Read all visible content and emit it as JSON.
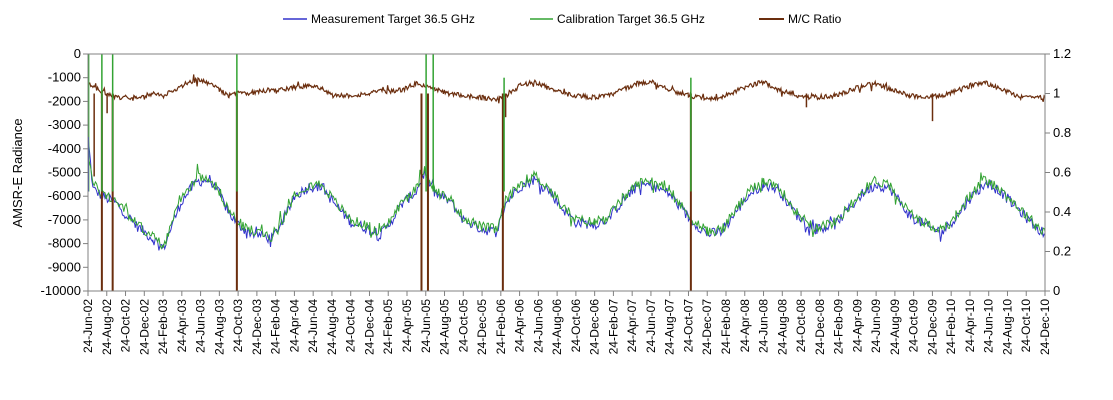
{
  "chart_data": {
    "type": "line",
    "title": "",
    "ylabel_left": "AMSR-E Radiance",
    "ylabel_right": "",
    "ylim_left": [
      -10000,
      0
    ],
    "yticks_left": [
      0,
      -1000,
      -2000,
      -3000,
      -4000,
      -5000,
      -6000,
      -7000,
      -8000,
      -9000,
      -10000
    ],
    "yticks_left_labels": [
      "0",
      "-1000",
      "-2000",
      "-3000",
      "-4000",
      "-5000",
      "-6000",
      "-7000",
      "-8000",
      "-9000",
      "-10000"
    ],
    "ylim_right": [
      0,
      1.2
    ],
    "yticks_right": [
      0,
      0.2,
      0.4,
      0.6,
      0.8,
      1,
      1.2
    ],
    "yticks_right_labels": [
      "0",
      "0.2",
      "0.4",
      "0.6",
      "0.8",
      "1",
      "1.2"
    ],
    "x_range": [
      "2002-06-24",
      "2010-12-24"
    ],
    "x_tick_labels": [
      "24-Jun-02",
      "24-Aug-02",
      "24-Oct-02",
      "24-Dec-02",
      "24-Feb-03",
      "24-Apr-03",
      "24-Jun-03",
      "24-Aug-03",
      "24-Oct-03",
      "24-Dec-03",
      "24-Feb-04",
      "24-Apr-04",
      "24-Jun-04",
      "24-Aug-04",
      "24-Oct-04",
      "24-Dec-04",
      "24-Feb-05",
      "24-Apr-05",
      "24-Jun-05",
      "24-Aug-05",
      "24-Oct-05",
      "24-Dec-05",
      "24-Feb-06",
      "24-Apr-06",
      "24-Jun-06",
      "24-Aug-06",
      "24-Oct-06",
      "24-Dec-06",
      "24-Feb-07",
      "24-Apr-07",
      "24-Jun-07",
      "24-Aug-07",
      "24-Oct-07",
      "24-Dec-07",
      "24-Feb-08",
      "24-Apr-08",
      "24-Jun-08",
      "24-Aug-08",
      "24-Oct-08",
      "24-Dec-08",
      "24-Feb-09",
      "24-Apr-09",
      "24-Jun-09",
      "24-Aug-09",
      "24-Oct-09",
      "24-Dec-09",
      "24-Feb-10",
      "24-Apr-10",
      "24-Jun-10",
      "24-Aug-10",
      "24-Oct-10",
      "24-Dec-10"
    ],
    "grid": false,
    "legend_position": "top",
    "series": [
      {
        "name": "Measurement Target 36.5 GHz",
        "axis": "left",
        "color": "#3333cc",
        "points": [
          [
            "2002-06-24",
            -3500
          ],
          [
            "2002-07-10",
            -5700
          ],
          [
            "2002-08-10",
            -6000
          ],
          [
            "2002-09-24",
            -6300
          ],
          [
            "2002-11-24",
            -7200
          ],
          [
            "2003-01-20",
            -7800
          ],
          [
            "2003-02-24",
            -8200
          ],
          [
            "2003-03-24",
            -7200
          ],
          [
            "2003-04-24",
            -6200
          ],
          [
            "2003-06-10",
            -5400
          ],
          [
            "2003-07-24",
            -5300
          ],
          [
            "2003-08-24",
            -5900
          ],
          [
            "2003-09-24",
            -6700
          ],
          [
            "2003-10-24",
            -7200
          ],
          [
            "2003-11-24",
            -7500
          ],
          [
            "2003-12-24",
            -7600
          ],
          [
            "2004-02-10",
            -7800
          ],
          [
            "2004-03-24",
            -6900
          ],
          [
            "2004-04-24",
            -6000
          ],
          [
            "2004-06-10",
            -5600
          ],
          [
            "2004-07-24",
            -5600
          ],
          [
            "2004-08-24",
            -6200
          ],
          [
            "2004-10-24",
            -7100
          ],
          [
            "2004-12-24",
            -7400
          ],
          [
            "2005-01-24",
            -7700
          ],
          [
            "2005-02-24",
            -7200
          ],
          [
            "2005-04-10",
            -6300
          ],
          [
            "2005-05-24",
            -5800
          ],
          [
            "2005-06-20",
            -5000
          ],
          [
            "2005-07-24",
            -5900
          ],
          [
            "2005-09-10",
            -6200
          ],
          [
            "2005-10-24",
            -7000
          ],
          [
            "2005-12-24",
            -7400
          ],
          [
            "2006-02-10",
            -7500
          ],
          [
            "2006-03-10",
            -6300
          ],
          [
            "2006-04-24",
            -5600
          ],
          [
            "2006-06-10",
            -5300
          ],
          [
            "2006-07-24",
            -5700
          ],
          [
            "2006-09-10",
            -6500
          ],
          [
            "2006-10-24",
            -7100
          ],
          [
            "2006-12-24",
            -7200
          ],
          [
            "2007-02-10",
            -6900
          ],
          [
            "2007-03-24",
            -6200
          ],
          [
            "2007-05-10",
            -5600
          ],
          [
            "2007-06-24",
            -5500
          ],
          [
            "2007-08-24",
            -5900
          ],
          [
            "2007-10-24",
            -6900
          ],
          [
            "2007-12-24",
            -7600
          ],
          [
            "2008-02-10",
            -7500
          ],
          [
            "2008-03-24",
            -6700
          ],
          [
            "2008-05-10",
            -5900
          ],
          [
            "2008-06-24",
            -5500
          ],
          [
            "2008-08-10",
            -5700
          ],
          [
            "2008-10-10",
            -6800
          ],
          [
            "2008-12-10",
            -7400
          ],
          [
            "2009-02-10",
            -7200
          ],
          [
            "2009-03-24",
            -6600
          ],
          [
            "2009-05-10",
            -5900
          ],
          [
            "2009-06-24",
            -5500
          ],
          [
            "2009-08-10",
            -5700
          ],
          [
            "2009-10-10",
            -6800
          ],
          [
            "2009-12-10",
            -7300
          ],
          [
            "2010-01-24",
            -7500
          ],
          [
            "2010-03-10",
            -6900
          ],
          [
            "2010-04-24",
            -6100
          ],
          [
            "2010-06-10",
            -5500
          ],
          [
            "2010-07-24",
            -5700
          ],
          [
            "2010-09-24",
            -6500
          ],
          [
            "2010-11-24",
            -7300
          ],
          [
            "2010-12-24",
            -7600
          ]
        ]
      },
      {
        "name": "Calibration Target 36.5 GHz",
        "axis": "left",
        "color": "#33a333",
        "points": [
          [
            "2002-06-24",
            -4000
          ],
          [
            "2002-07-10",
            -5500
          ],
          [
            "2002-08-10",
            -5900
          ],
          [
            "2002-09-24",
            -6200
          ],
          [
            "2002-11-24",
            -7100
          ],
          [
            "2003-01-20",
            -7700
          ],
          [
            "2003-02-24",
            -8100
          ],
          [
            "2003-03-24",
            -7100
          ],
          [
            "2003-04-24",
            -6100
          ],
          [
            "2003-06-10",
            -5200
          ],
          [
            "2003-07-24",
            -5200
          ],
          [
            "2003-08-24",
            -5800
          ],
          [
            "2003-09-24",
            -6600
          ],
          [
            "2003-10-24",
            -7100
          ],
          [
            "2003-11-24",
            -7400
          ],
          [
            "2003-12-24",
            -7500
          ],
          [
            "2004-02-10",
            -7700
          ],
          [
            "2004-03-24",
            -6800
          ],
          [
            "2004-04-24",
            -5900
          ],
          [
            "2004-06-10",
            -5500
          ],
          [
            "2004-07-24",
            -5500
          ],
          [
            "2004-08-24",
            -6100
          ],
          [
            "2004-10-24",
            -7000
          ],
          [
            "2004-12-24",
            -7300
          ],
          [
            "2005-01-24",
            -7600
          ],
          [
            "2005-02-24",
            -7100
          ],
          [
            "2005-04-10",
            -6200
          ],
          [
            "2005-05-24",
            -5700
          ],
          [
            "2005-06-20",
            -4800
          ],
          [
            "2005-07-24",
            -5800
          ],
          [
            "2005-09-10",
            -6100
          ],
          [
            "2005-10-24",
            -6900
          ],
          [
            "2005-12-24",
            -7300
          ],
          [
            "2006-02-10",
            -7400
          ],
          [
            "2006-03-10",
            -6200
          ],
          [
            "2006-04-24",
            -5500
          ],
          [
            "2006-06-10",
            -5100
          ],
          [
            "2006-07-24",
            -5600
          ],
          [
            "2006-09-10",
            -6400
          ],
          [
            "2006-10-24",
            -7000
          ],
          [
            "2006-12-24",
            -7100
          ],
          [
            "2007-02-10",
            -6800
          ],
          [
            "2007-03-24",
            -6100
          ],
          [
            "2007-05-10",
            -5500
          ],
          [
            "2007-06-24",
            -5300
          ],
          [
            "2007-08-24",
            -5800
          ],
          [
            "2007-10-24",
            -6800
          ],
          [
            "2007-12-24",
            -7500
          ],
          [
            "2008-02-10",
            -7400
          ],
          [
            "2008-03-24",
            -6600
          ],
          [
            "2008-05-10",
            -5800
          ],
          [
            "2008-06-24",
            -5300
          ],
          [
            "2008-08-10",
            -5600
          ],
          [
            "2008-10-10",
            -6700
          ],
          [
            "2008-12-10",
            -7300
          ],
          [
            "2009-02-10",
            -7100
          ],
          [
            "2009-03-24",
            -6500
          ],
          [
            "2009-05-10",
            -5800
          ],
          [
            "2009-06-24",
            -5300
          ],
          [
            "2009-08-10",
            -5600
          ],
          [
            "2009-10-10",
            -6700
          ],
          [
            "2009-12-10",
            -7200
          ],
          [
            "2010-01-24",
            -7400
          ],
          [
            "2010-03-10",
            -6800
          ],
          [
            "2010-04-24",
            -6000
          ],
          [
            "2010-06-10",
            -5300
          ],
          [
            "2010-07-24",
            -5600
          ],
          [
            "2010-09-24",
            -6400
          ],
          [
            "2010-11-24",
            -7200
          ],
          [
            "2010-12-24",
            -7500
          ]
        ]
      },
      {
        "name": "M/C Ratio",
        "axis": "right",
        "color": "#6b2e0e",
        "points": [
          [
            "2002-06-24",
            1.05
          ],
          [
            "2002-07-10",
            1.03
          ],
          [
            "2002-08-10",
            1.01
          ],
          [
            "2002-09-24",
            0.98
          ],
          [
            "2002-11-24",
            0.98
          ],
          [
            "2003-01-20",
            1.0
          ],
          [
            "2003-02-24",
            0.99
          ],
          [
            "2003-03-24",
            1.01
          ],
          [
            "2003-04-24",
            1.04
          ],
          [
            "2003-06-10",
            1.07
          ],
          [
            "2003-07-24",
            1.05
          ],
          [
            "2003-08-24",
            1.02
          ],
          [
            "2003-09-24",
            0.99
          ],
          [
            "2003-10-24",
            1.0
          ],
          [
            "2003-11-24",
            1.0
          ],
          [
            "2003-12-24",
            1.01
          ],
          [
            "2004-02-10",
            1.02
          ],
          [
            "2004-03-24",
            1.02
          ],
          [
            "2004-04-24",
            1.03
          ],
          [
            "2004-06-10",
            1.04
          ],
          [
            "2004-07-24",
            1.02
          ],
          [
            "2004-08-24",
            0.99
          ],
          [
            "2004-10-24",
            0.99
          ],
          [
            "2004-12-24",
            1.0
          ],
          [
            "2005-01-24",
            1.01
          ],
          [
            "2005-02-24",
            1.01
          ],
          [
            "2005-04-10",
            1.02
          ],
          [
            "2005-05-24",
            1.05
          ],
          [
            "2005-06-20",
            1.04
          ],
          [
            "2005-07-24",
            1.02
          ],
          [
            "2005-09-10",
            1.0
          ],
          [
            "2005-10-24",
            0.99
          ],
          [
            "2005-12-24",
            0.98
          ],
          [
            "2006-02-10",
            0.97
          ],
          [
            "2006-03-10",
            0.99
          ],
          [
            "2006-04-24",
            1.04
          ],
          [
            "2006-06-10",
            1.06
          ],
          [
            "2006-07-24",
            1.03
          ],
          [
            "2006-09-10",
            1.0
          ],
          [
            "2006-10-24",
            0.99
          ],
          [
            "2006-12-24",
            0.98
          ],
          [
            "2007-02-10",
            0.99
          ],
          [
            "2007-03-24",
            1.02
          ],
          [
            "2007-05-10",
            1.05
          ],
          [
            "2007-06-24",
            1.06
          ],
          [
            "2007-08-24",
            1.02
          ],
          [
            "2007-10-24",
            0.99
          ],
          [
            "2007-12-24",
            0.97
          ],
          [
            "2008-02-10",
            0.98
          ],
          [
            "2008-03-24",
            1.01
          ],
          [
            "2008-05-10",
            1.04
          ],
          [
            "2008-06-24",
            1.06
          ],
          [
            "2008-08-10",
            1.02
          ],
          [
            "2008-10-10",
            0.99
          ],
          [
            "2008-12-10",
            0.98
          ],
          [
            "2009-02-10",
            0.99
          ],
          [
            "2009-03-24",
            1.01
          ],
          [
            "2009-05-10",
            1.04
          ],
          [
            "2009-06-24",
            1.05
          ],
          [
            "2009-08-10",
            1.02
          ],
          [
            "2009-10-10",
            0.99
          ],
          [
            "2009-12-10",
            0.98
          ],
          [
            "2010-01-24",
            0.99
          ],
          [
            "2010-03-10",
            1.01
          ],
          [
            "2010-04-24",
            1.04
          ],
          [
            "2010-06-10",
            1.06
          ],
          [
            "2010-07-24",
            1.03
          ],
          [
            "2010-09-24",
            0.99
          ],
          [
            "2010-11-24",
            0.98
          ],
          [
            "2010-12-24",
            0.98
          ]
        ],
        "drops": [
          [
            "2002-08-08",
            0
          ],
          [
            "2002-09-12",
            0
          ],
          [
            "2003-10-20",
            0
          ],
          [
            "2005-06-10",
            0
          ],
          [
            "2005-07-01",
            0
          ],
          [
            "2006-03-01",
            0
          ],
          [
            "2007-11-01",
            0
          ]
        ],
        "dips": [
          [
            "2002-07-14",
            0.58
          ],
          [
            "2002-08-25",
            0.9
          ],
          [
            "2006-03-10",
            0.88
          ],
          [
            "2009-12-24",
            0.86
          ],
          [
            "2008-11-10",
            0.93
          ]
        ]
      }
    ],
    "calibration_spikes": [
      [
        "2002-06-26",
        0
      ],
      [
        "2002-08-08",
        0
      ],
      [
        "2002-09-12",
        0
      ],
      [
        "2003-10-20",
        0
      ],
      [
        "2005-06-25",
        0
      ],
      [
        "2005-07-18",
        0
      ],
      [
        "2006-03-05",
        -1000
      ],
      [
        "2007-11-01",
        -1000
      ]
    ],
    "measurement_spikes": [
      [
        "2002-06-25",
        -3500
      ]
    ]
  }
}
